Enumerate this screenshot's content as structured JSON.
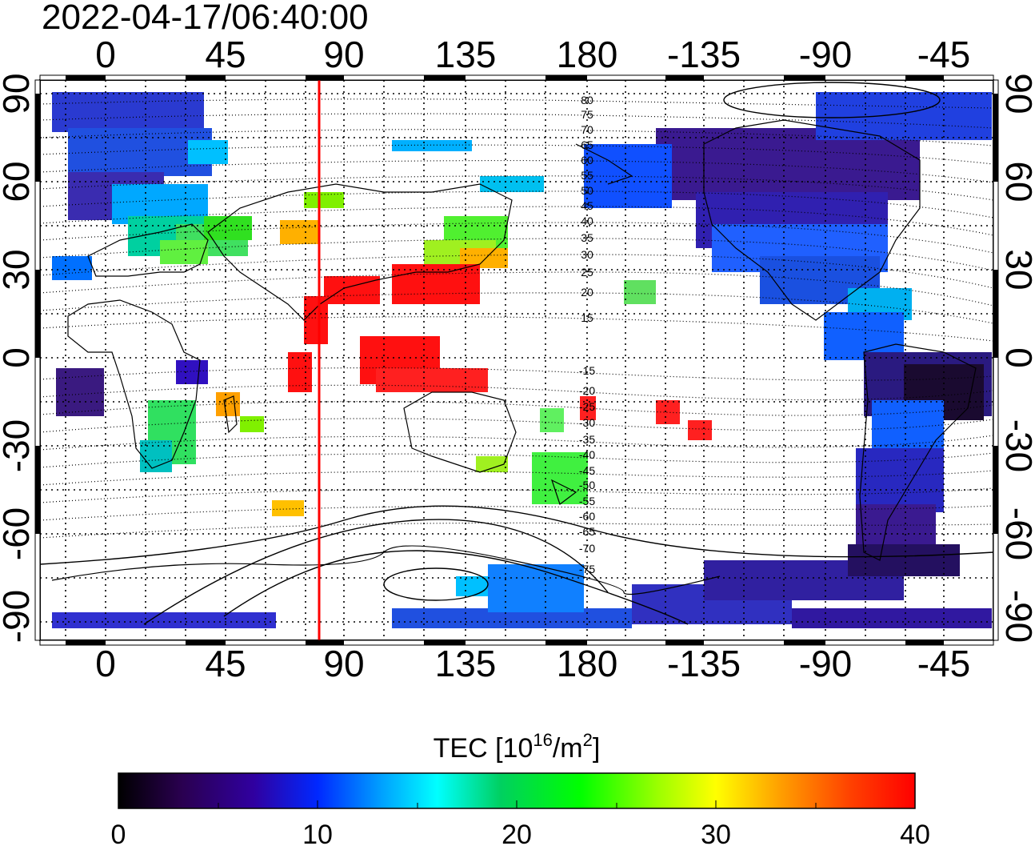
{
  "timestamp": "2022-04-17/06:40:00",
  "map": {
    "x_ticks_top": [
      "0",
      "45",
      "90",
      "135",
      "180",
      "-135",
      "-90",
      "-45"
    ],
    "x_ticks_bottom": [
      "0",
      "45",
      "90",
      "135",
      "180",
      "-135",
      "-90",
      "-45"
    ],
    "y_ticks_left": [
      "90",
      "60",
      "30",
      "0",
      "-30",
      "-60",
      "-90"
    ],
    "y_ticks_right": [
      "90",
      "60",
      "30",
      "0",
      "-30",
      "-60",
      "-90"
    ],
    "marker_line": {
      "longitude": 80,
      "color": "#ff0000"
    },
    "contour_labels": [
      "80",
      "75",
      "70",
      "65",
      "60",
      "55",
      "50",
      "45",
      "40",
      "35",
      "30",
      "25",
      "20",
      "15",
      "-15",
      "-20",
      "-25",
      "-30",
      "-35",
      "-40",
      "-45",
      "-50",
      "-55",
      "-60",
      "-65",
      "-70",
      "-75"
    ]
  },
  "colorbar": {
    "title_main": "TEC  [10",
    "title_sup1": "16",
    "title_mid": "/m",
    "title_sup2": "2",
    "title_end": "]",
    "ticks": [
      "0",
      "10",
      "20",
      "30",
      "40"
    ],
    "range": [
      0,
      40
    ],
    "colors": [
      "#000000",
      "#2a0050",
      "#3000a0",
      "#0028ff",
      "#00a0ff",
      "#00ffff",
      "#00d060",
      "#00ff00",
      "#a0ff00",
      "#ffff00",
      "#ffa000",
      "#ff4000",
      "#ff0000"
    ]
  }
}
